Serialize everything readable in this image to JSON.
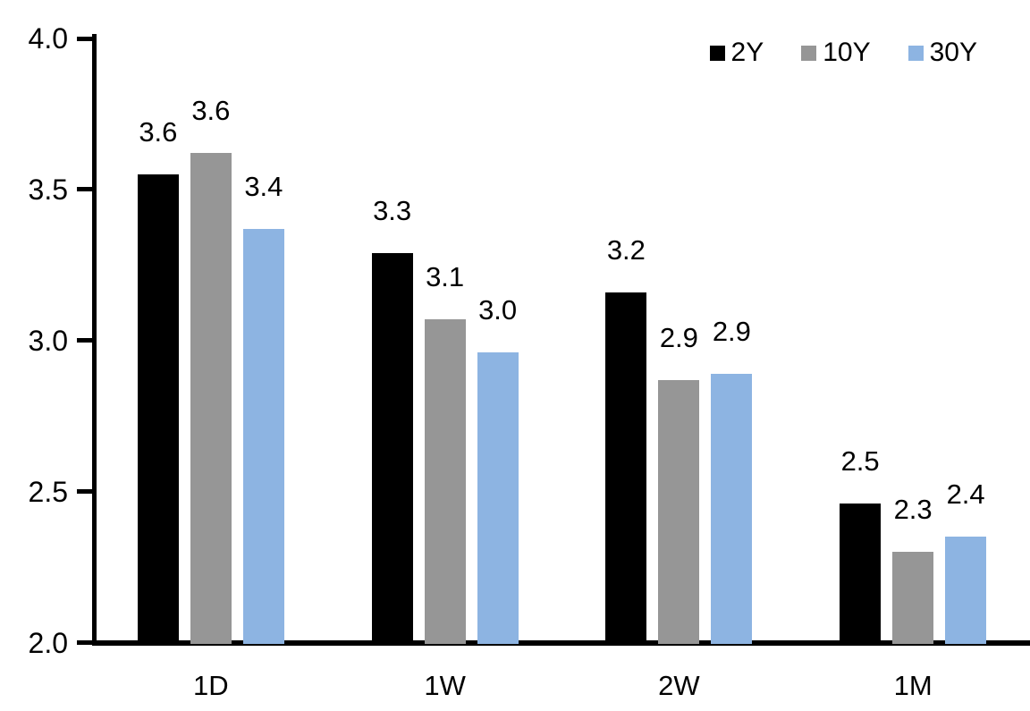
{
  "chart_data": {
    "type": "bar",
    "title": "",
    "xlabel": "",
    "ylabel": "",
    "categories": [
      "1D",
      "1W",
      "2W",
      "1M"
    ],
    "series": [
      {
        "name": "2Y",
        "color": "#000000",
        "values": [
          3.55,
          3.29,
          3.16,
          2.46
        ],
        "data_labels": [
          "3.6",
          "3.3",
          "3.2",
          "2.5"
        ]
      },
      {
        "name": "10Y",
        "color": "#969696",
        "values": [
          3.62,
          3.07,
          2.87,
          2.3
        ],
        "data_labels": [
          "3.6",
          "3.1",
          "2.9",
          "2.3"
        ]
      },
      {
        "name": "30Y",
        "color": "#8DB4E2",
        "values": [
          3.37,
          2.96,
          2.89,
          2.35
        ],
        "data_labels": [
          "3.4",
          "3.0",
          "2.9",
          "2.4"
        ]
      }
    ],
    "ylim": [
      2.0,
      4.0
    ],
    "ytick_labels": [
      "2.0",
      "2.5",
      "3.0",
      "3.5",
      "4.0"
    ],
    "grid": false,
    "legend_position": "top-right",
    "axis_color": "#000000",
    "text_color": "#000000",
    "background_color": "#FFFFFF"
  }
}
